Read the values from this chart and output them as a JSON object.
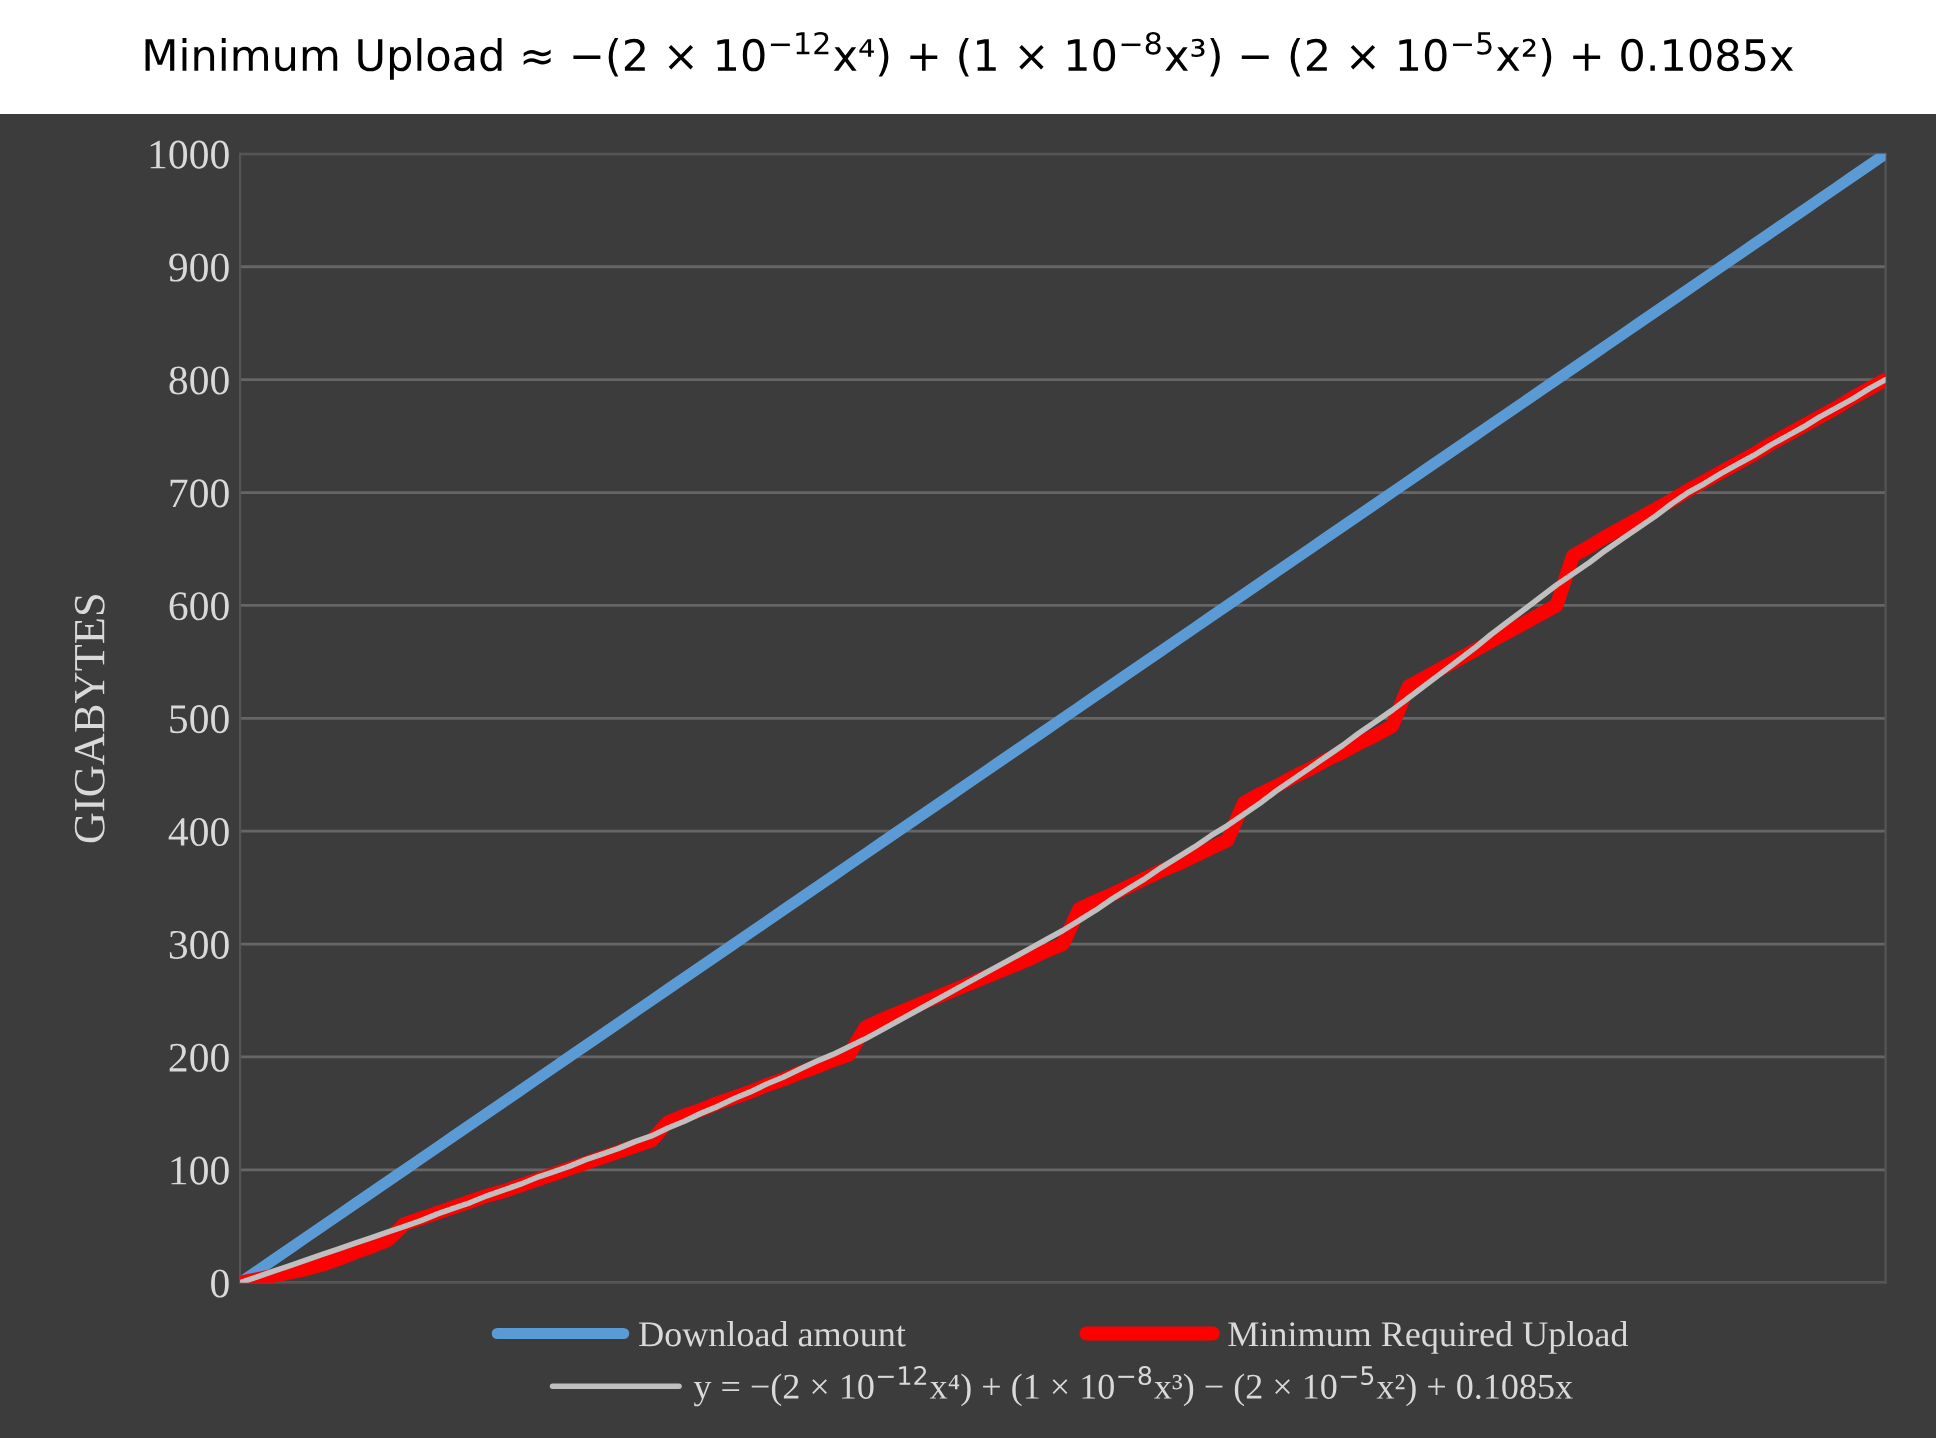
{
  "chart_data": {
    "type": "line",
    "title": "Minimum Upload ≈ −(2 × 10$^{−12}$x⁴) + (1 × 10$^{−8}$x³) − (2 × 10$^{−5}$x²) + 0.1085x",
    "ylabel": "GIGABYTES",
    "categories": [
      null,
      null,
      null,
      null,
      null,
      null,
      null,
      null,
      null,
      null,
      null,
      null,
      null,
      null,
      null,
      null,
      null,
      null,
      null,
      null,
      null,
      null,
      null,
      null,
      null,
      null,
      null,
      null,
      null,
      null,
      null,
      null,
      null,
      null,
      null,
      null,
      null,
      null,
      null,
      null,
      null,
      null,
      null,
      null,
      null,
      null,
      null,
      null,
      null,
      null,
      null,
      null,
      null,
      null,
      null,
      null,
      null,
      null,
      null,
      null,
      null,
      null,
      null,
      null,
      null,
      null,
      null,
      null,
      null,
      null,
      null,
      null,
      null,
      null,
      null,
      null,
      null,
      null,
      null,
      null,
      null,
      null,
      null,
      null,
      null,
      null,
      null,
      null,
      null,
      null,
      null,
      null,
      null,
      null,
      null,
      null,
      null,
      null,
      null,
      null,
      null
    ],
    "series": [
      {
        "name": "Download amount",
        "color": "#5b9bd5",
        "values": [
          0,
          10,
          20,
          30,
          40,
          50,
          60,
          70,
          80,
          90,
          100,
          110,
          120,
          130,
          140,
          150,
          160,
          170,
          180,
          190,
          200,
          210,
          220,
          230,
          240,
          250,
          260,
          270,
          280,
          290,
          300,
          310,
          320,
          330,
          340,
          350,
          360,
          370,
          380,
          390,
          400,
          410,
          420,
          430,
          440,
          450,
          460,
          470,
          480,
          490,
          500,
          510,
          520,
          530,
          540,
          550,
          560,
          570,
          580,
          590,
          600,
          610,
          620,
          630,
          640,
          650,
          660,
          670,
          680,
          690,
          700,
          710,
          720,
          730,
          740,
          750,
          760,
          770,
          780,
          790,
          800,
          810,
          820,
          830,
          840,
          850,
          860,
          870,
          880,
          890,
          900,
          910,
          920,
          930,
          940,
          950,
          960,
          970,
          980,
          990,
          1000
        ]
      },
      {
        "name": "Minimum Required Upload",
        "color": "#ff0000",
        "values": [
          0,
          3,
          6,
          9,
          12,
          16,
          21,
          27,
          32,
          38,
          52,
          57,
          62,
          67,
          72,
          77,
          81,
          86,
          91,
          96,
          101,
          106,
          111,
          116,
          121,
          126,
          142,
          148,
          153,
          159,
          164,
          169,
          175,
          180,
          186,
          191,
          197,
          202,
          226,
          233,
          239,
          245,
          251,
          257,
          263,
          269,
          275,
          281,
          287,
          294,
          300,
          331,
          338,
          344,
          351,
          358,
          365,
          371,
          378,
          385,
          392,
          425,
          433,
          440,
          448,
          455,
          463,
          470,
          478,
          485,
          493,
          528,
          536,
          544,
          552,
          560,
          568,
          576,
          584,
          592,
          600,
          644,
          652,
          661,
          669,
          677,
          685,
          693,
          702,
          710,
          718,
          726,
          734,
          743,
          751,
          759,
          767,
          775,
          784,
          792,
          800
        ]
      },
      {
        "name": "y = −(2 × 10$^{−12}$x⁴) + (1 × 10$^{−8}$x³) − (2 × 10$^{−5}$x²) + 0.1085x",
        "color": "#bfbfbf",
        "values": [
          0,
          5,
          10,
          15,
          20,
          25,
          30,
          35,
          40,
          45,
          50,
          55,
          61,
          66,
          71,
          77,
          82,
          87,
          93,
          98,
          103,
          109,
          114,
          119,
          125,
          130,
          137,
          143,
          150,
          156,
          163,
          169,
          176,
          182,
          189,
          196,
          202,
          209,
          216,
          224,
          232,
          240,
          248,
          256,
          264,
          272,
          280,
          288,
          296,
          304,
          312,
          321,
          330,
          340,
          349,
          358,
          368,
          377,
          386,
          396,
          405,
          415,
          425,
          436,
          446,
          456,
          466,
          476,
          487,
          497,
          507,
          518,
          529,
          540,
          551,
          562,
          574,
          585,
          596,
          607,
          618,
          628,
          638,
          649,
          659,
          669,
          679,
          690,
          700,
          708,
          717,
          725,
          733,
          742,
          750,
          758,
          767,
          775,
          783,
          792,
          800
        ]
      }
    ],
    "ylim": [
      0,
      1000
    ],
    "yticks": [
      0,
      100,
      200,
      300,
      400,
      500,
      600,
      700,
      800,
      900,
      1000
    ],
    "grid": "y",
    "legend": "bottom",
    "tick_labels": "y",
    "marker": "none",
    "line_style": "solid"
  }
}
